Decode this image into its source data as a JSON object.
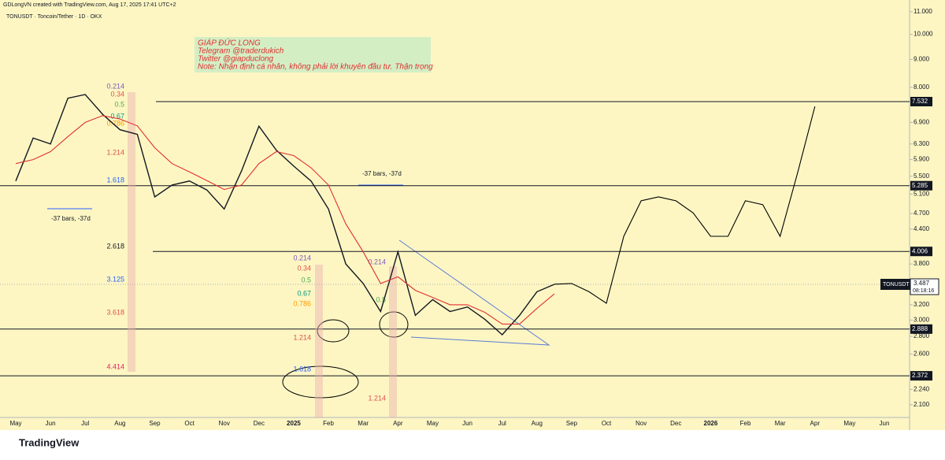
{
  "header": {
    "credit": "GDLongVN created with TradingView.com, Aug 17, 2025 17:41 UTC+2",
    "symbol": "TONUSDT · Toncoin/Tether · 1D · OKX"
  },
  "note": [
    "GIÁP ĐỨC LONG",
    "Telegram @traderdukich",
    "Twitter @giapduclong",
    "Note: Nhận định cá nhân, không phải lời khuyên đầu tư. Thận trọng"
  ],
  "footer": "TradingView",
  "chart_data": {
    "type": "line",
    "log_scale": true,
    "grid": false,
    "categories": [
      "May",
      null,
      "Jun",
      null,
      "Jul",
      null,
      "Aug",
      null,
      "Sep",
      null,
      "Oct",
      null,
      "Nov",
      null,
      "Dec",
      null,
      "2025",
      null,
      "Feb",
      null,
      "Mar",
      null,
      "Apr",
      null,
      "May",
      null,
      "Jun",
      null,
      "Jul",
      null,
      "Aug",
      null,
      "Sep",
      null,
      "Oct",
      null,
      "Nov",
      null,
      "Dec",
      null,
      "2026",
      null,
      "Feb",
      null,
      "Mar",
      null,
      "Apr",
      null,
      "May",
      null,
      "Jun"
    ],
    "series": [
      {
        "name": "TONUSDT",
        "color": "#131722",
        "values": [
          5.39,
          6.46,
          6.3,
          7.64,
          7.76,
          7.14,
          6.69,
          6.56,
          5.04,
          5.3,
          5.39,
          5.19,
          4.79,
          5.63,
          6.79,
          6.14,
          5.74,
          5.39,
          4.79,
          3.8,
          3.5,
          3.11,
          4.0,
          3.06,
          3.27,
          3.11,
          3.17,
          3.01,
          2.82,
          3.06,
          3.38,
          3.487,
          null,
          null,
          null,
          null,
          null,
          null,
          null,
          null,
          null,
          null,
          null,
          null,
          null,
          null,
          null,
          null,
          null,
          null,
          null
        ]
      },
      {
        "color": "#e03030",
        "values": [
          5.8,
          5.9,
          6.1,
          6.5,
          6.9,
          7.1,
          7.0,
          6.8,
          6.2,
          5.8,
          5.6,
          5.4,
          5.2,
          5.3,
          5.8,
          6.1,
          6.0,
          5.7,
          5.3,
          4.5,
          4.0,
          3.5,
          3.6,
          3.4,
          3.3,
          3.2,
          3.2,
          3.1,
          2.95,
          2.95,
          3.15,
          3.35,
          null,
          null,
          null,
          null,
          null,
          null,
          null,
          null,
          null,
          null,
          null,
          null,
          null,
          null,
          null,
          null,
          null,
          null,
          null
        ]
      },
      {
        "color": "#000000",
        "values": [
          null,
          null,
          null,
          null,
          null,
          null,
          null,
          null,
          null,
          null,
          null,
          null,
          null,
          null,
          null,
          null,
          null,
          null,
          null,
          null,
          null,
          null,
          null,
          null,
          null,
          null,
          null,
          null,
          null,
          null,
          null,
          3.49,
          3.5,
          3.38,
          3.22,
          4.27,
          4.96,
          5.04,
          4.96,
          4.71,
          4.27,
          4.27,
          4.96,
          4.88,
          4.27,
          5.57,
          7.38,
          null,
          null,
          null,
          null
        ]
      }
    ],
    "ylim": [
      1.99,
      11.18
    ],
    "yticks": [
      {
        "value": 2.1,
        "label": "2.100"
      },
      {
        "value": 2.24,
        "label": "2.240"
      },
      {
        "value": 2.6,
        "label": "2.600"
      },
      {
        "value": 2.8,
        "label": "2.800"
      },
      {
        "value": 3,
        "label": "3.000"
      },
      {
        "value": 3.2,
        "label": "3.200"
      },
      {
        "value": 3.8,
        "label": "3.800"
      },
      {
        "value": 4.4,
        "label": "4.400"
      },
      {
        "value": 4.7,
        "label": "4.700"
      },
      {
        "value": 5.1,
        "label": "5.100"
      },
      {
        "value": 5.5,
        "label": "5.500"
      },
      {
        "value": 5.9,
        "label": "5.900"
      },
      {
        "value": 6.3,
        "label": "6.300"
      },
      {
        "value": 6.9,
        "label": "6.900"
      },
      {
        "value": 8,
        "label": "8.000"
      },
      {
        "value": 9,
        "label": "9.000"
      },
      {
        "value": 10,
        "label": "10.000"
      },
      {
        "value": 11,
        "label": "11.000"
      }
    ],
    "levels": [
      {
        "value": 7.532,
        "label": "7.532"
      },
      {
        "value": 5.285,
        "label": "5.285"
      },
      {
        "value": 4.006,
        "label": "4.006"
      },
      {
        "value": 2.888,
        "label": "2.888"
      },
      {
        "value": 2.372,
        "label": "2.372"
      }
    ],
    "last_price": {
      "name": "TONUSDT",
      "value": 3.487,
      "label": "3.487",
      "countdown": "08:18:16"
    },
    "annotations": [
      "-37 bars, -37d",
      "-37 bars, -37d"
    ],
    "fib_sets": [
      {
        "labels": [
          "0.214",
          "0.34",
          "0.5",
          "0.67",
          "0.786",
          "1.214",
          "1.618",
          "2.618",
          "3.125",
          "3.618",
          "4.414"
        ],
        "colors": [
          "#7e57c2",
          "#e05050",
          "#4caf50",
          "#089981",
          "#ff9800",
          "#e05050",
          "#2962ff",
          "#131722",
          "#2962ff",
          "#e05050",
          "#e91e63"
        ]
      },
      {
        "labels": [
          "0.214",
          "0.34",
          "0.5",
          "0.67",
          "0.786",
          "1.214",
          "1.618"
        ],
        "colors": [
          "#7e57c2",
          "#e05050",
          "#4caf50",
          "#089981",
          "#ff9800",
          "#e05050",
          "#2962ff"
        ]
      },
      {
        "labels": [
          "0.214",
          "0.5",
          "1.214"
        ],
        "colors": [
          "#7e57c2",
          "#4caf50",
          "#e05050"
        ]
      }
    ]
  }
}
